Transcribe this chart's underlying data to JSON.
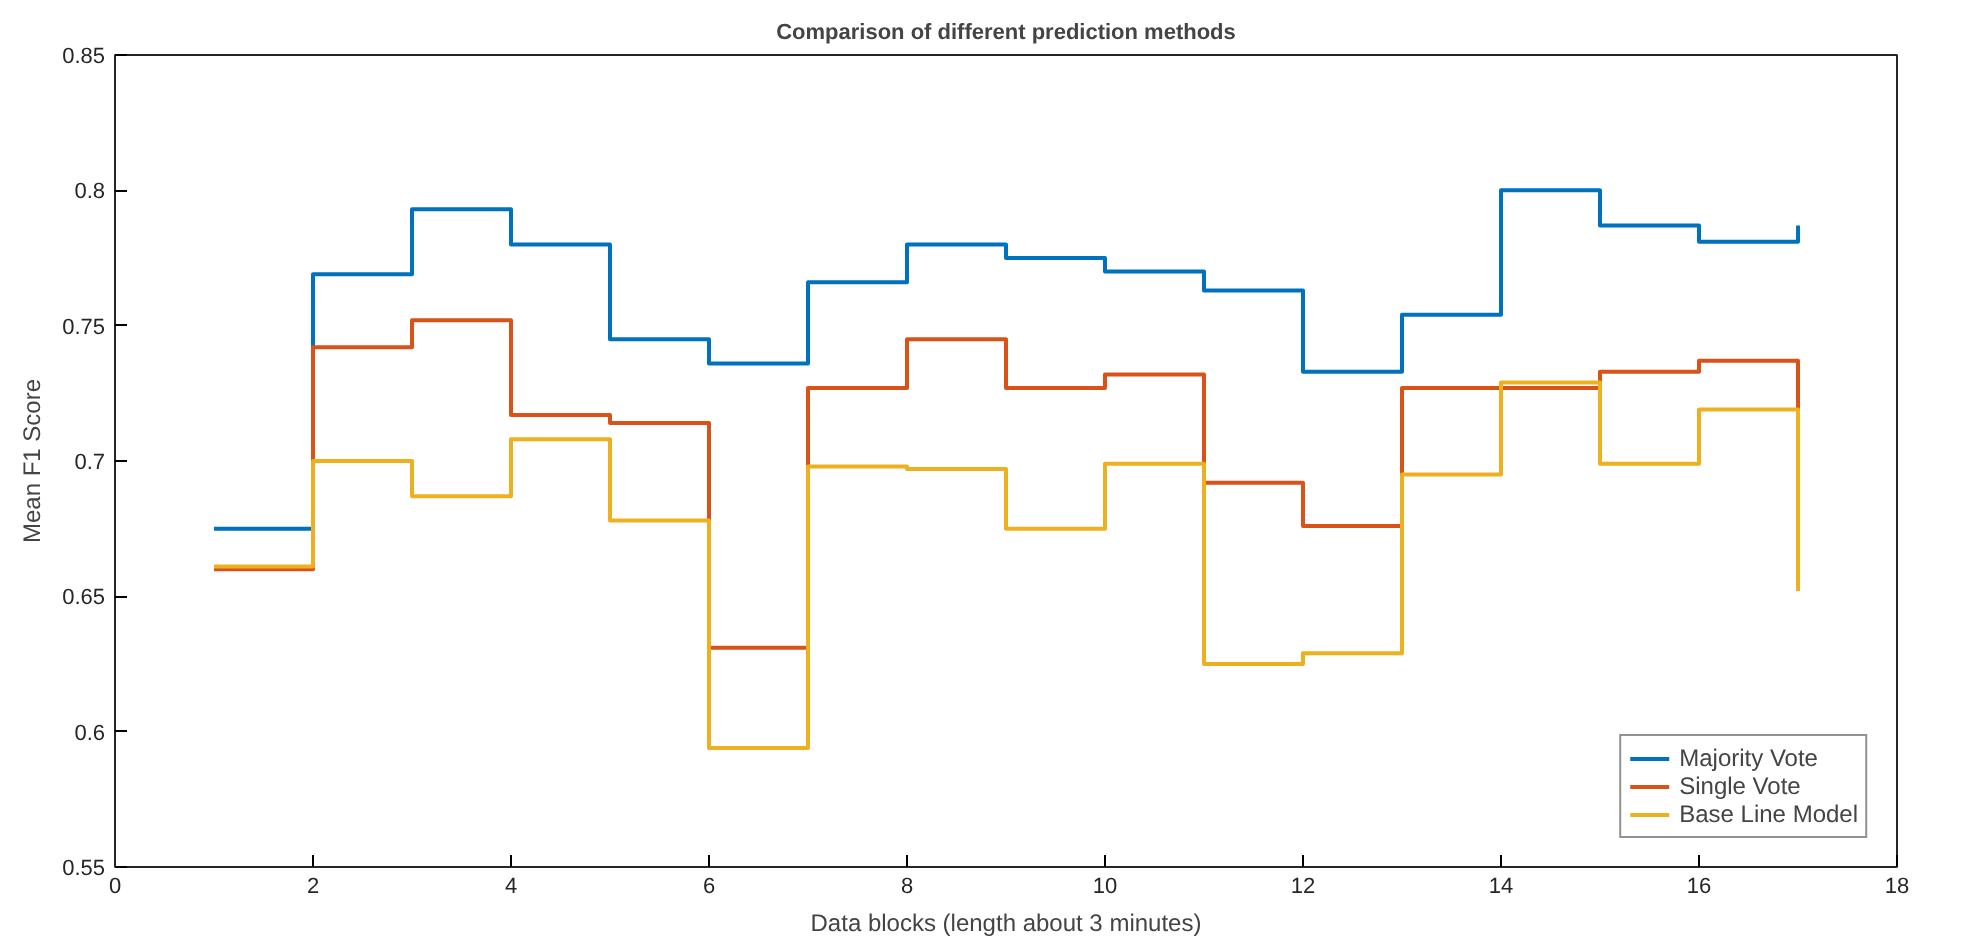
{
  "chart_data": {
    "type": "step",
    "title": "Comparison of different prediction methods",
    "xlabel": "Data blocks (length about 3 minutes)",
    "ylabel": "Mean F1 Score",
    "x": [
      1,
      2,
      3,
      4,
      5,
      6,
      7,
      8,
      9,
      10,
      11,
      12,
      13,
      14,
      15,
      16,
      17
    ],
    "series": [
      {
        "name": "Majority Vote",
        "color": "#0072bd",
        "values": [
          0.675,
          0.769,
          0.793,
          0.78,
          0.745,
          0.736,
          0.766,
          0.78,
          0.775,
          0.77,
          0.763,
          0.733,
          0.754,
          0.8,
          0.787,
          0.781,
          0.787
        ]
      },
      {
        "name": "Single Vote",
        "color": "#d95319",
        "values": [
          0.66,
          0.742,
          0.752,
          0.717,
          0.714,
          0.631,
          0.727,
          0.745,
          0.727,
          0.732,
          0.692,
          0.676,
          0.727,
          0.727,
          0.733,
          0.737,
          0.719
        ]
      },
      {
        "name": "Base Line Model",
        "color": "#edb120",
        "values": [
          0.661,
          0.7,
          0.687,
          0.708,
          0.678,
          0.594,
          0.698,
          0.697,
          0.675,
          0.699,
          0.625,
          0.629,
          0.695,
          0.729,
          0.699,
          0.719,
          0.652
        ]
      }
    ],
    "xlim": [
      0,
      18
    ],
    "xticks": [
      0,
      2,
      4,
      6,
      8,
      10,
      12,
      14,
      16,
      18
    ],
    "ylim": [
      0.55,
      0.85
    ],
    "yticks": [
      0.55,
      0.6,
      0.65,
      0.7,
      0.75,
      0.8,
      0.85
    ],
    "grid": false,
    "legend": "bottom right",
    "line_style": "solid"
  }
}
